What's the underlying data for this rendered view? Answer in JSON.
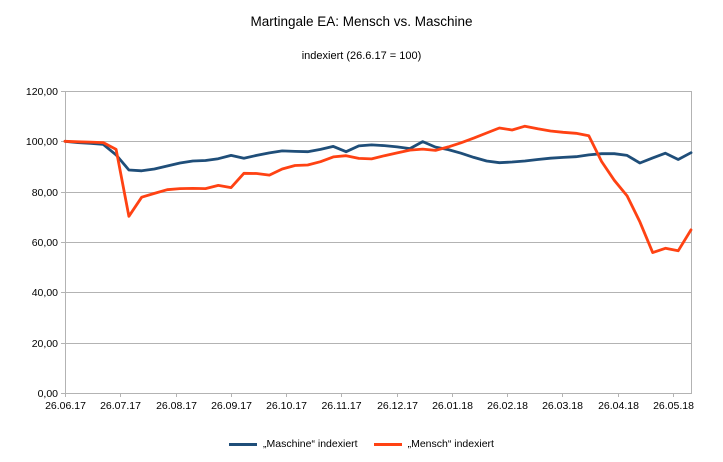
{
  "chart_data": {
    "type": "line",
    "title": "Martingale EA: Mensch vs. Maschine",
    "subtitle": "indexiert (26.6.17 = 100)",
    "xlabel": "",
    "ylabel": "",
    "ylim": [
      0,
      120
    ],
    "y_tick_step": 20,
    "y_tick_labels": [
      "0,00",
      "20,00",
      "40,00",
      "60,00",
      "80,00",
      "100,00",
      "120,00"
    ],
    "x_tick_labels": [
      "26.06.17",
      "26.07.17",
      "26.08.17",
      "26.09.17",
      "26.10.17",
      "26.11.17",
      "26.12.17",
      "26.01.18",
      "26.02.18",
      "26.03.18",
      "26.04.18",
      "26.05.18"
    ],
    "grid": true,
    "legend_position": "bottom",
    "sampling": "weekly",
    "colors": {
      "grid": "#b3b3b3",
      "axis": "#b3b3b3",
      "text": "#000000",
      "background": "#ffffff"
    },
    "series": [
      {
        "name": "„Maschine“ indexiert",
        "color": "#1f4e79",
        "values": [
          100.0,
          99.5,
          99.2,
          98.8,
          94.6,
          88.6,
          88.3,
          89.0,
          90.2,
          91.4,
          92.2,
          92.4,
          93.1,
          94.4,
          93.3,
          94.4,
          95.4,
          96.2,
          96.0,
          95.9,
          96.8,
          98.0,
          95.9,
          98.2,
          98.6,
          98.3,
          97.8,
          97.1,
          99.9,
          97.7,
          96.7,
          95.3,
          93.6,
          92.2,
          91.5,
          91.8,
          92.2,
          92.8,
          93.3,
          93.6,
          93.9,
          94.6,
          95.1,
          95.1,
          94.4,
          91.4,
          93.4,
          95.3,
          92.8,
          95.5
        ]
      },
      {
        "name": "„Mensch“ indexiert",
        "color": "#ff4213",
        "values": [
          100.0,
          99.8,
          99.7,
          99.5,
          96.8,
          70.2,
          77.8,
          79.3,
          80.8,
          81.2,
          81.3,
          81.2,
          82.5,
          81.6,
          87.3,
          87.2,
          86.6,
          89.0,
          90.4,
          90.6,
          91.9,
          93.8,
          94.3,
          93.2,
          93.0,
          94.3,
          95.4,
          96.5,
          96.9,
          96.4,
          97.8,
          99.4,
          101.3,
          103.3,
          105.3,
          104.5,
          106.0,
          105.0,
          104.1,
          103.6,
          103.2,
          102.2,
          92.0,
          84.5,
          78.3,
          68.0,
          55.8,
          57.5,
          56.5,
          64.8
        ]
      }
    ]
  }
}
